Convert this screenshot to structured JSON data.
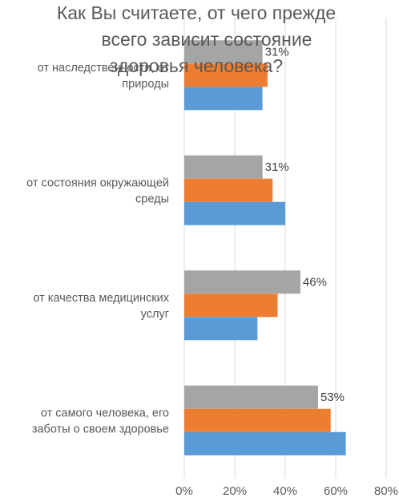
{
  "chart_data": {
    "type": "bar",
    "orientation": "horizontal",
    "title_lines": [
      "Как Вы считаете, от чего прежде",
      "всего зависит состояние",
      "здоровья человека?"
    ],
    "categories": [
      [
        "от наследственности, от",
        "природы"
      ],
      [
        "от состояния окружающей",
        "среды"
      ],
      [
        "от качества медицинских",
        "услуг"
      ],
      [
        "от самого человека, его",
        "заботы о своем здоровье"
      ]
    ],
    "series": [
      {
        "color": "#A5A5A5",
        "values": [
          31,
          31,
          46,
          53
        ],
        "labels": [
          "31%",
          "31%",
          "46%",
          "53%"
        ]
      },
      {
        "color": "#ED7D31",
        "values": [
          33,
          35,
          37,
          58
        ]
      },
      {
        "color": "#5B9BD5",
        "values": [
          31,
          40,
          29,
          64
        ]
      }
    ],
    "x_ticks": [
      "0%",
      "20%",
      "40%",
      "60%",
      "80%"
    ],
    "xlim": [
      0,
      80
    ],
    "grid": true
  }
}
